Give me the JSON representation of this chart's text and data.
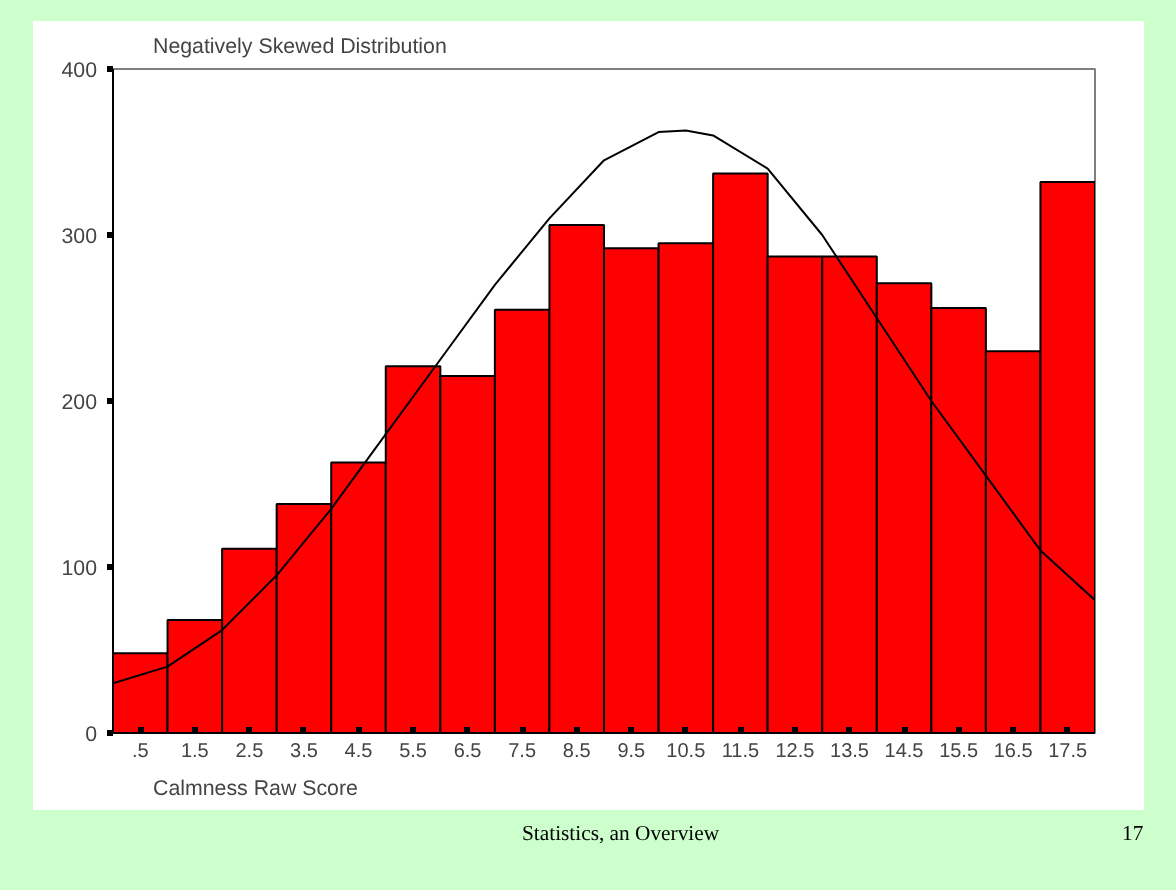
{
  "chart_data": {
    "type": "histogram",
    "title": "Negatively Skewed Distribution",
    "xlabel": "Calmness Raw Score",
    "bins": [
      0,
      1,
      2,
      3,
      4,
      5,
      6,
      7,
      8,
      9,
      10,
      11,
      12,
      13,
      14,
      15,
      16,
      17,
      18
    ],
    "values": [
      48,
      68,
      111,
      138,
      163,
      221,
      215,
      255,
      306,
      292,
      295,
      337,
      287,
      287,
      271,
      256,
      230,
      332
    ],
    "color": "#ff0000",
    "series": [
      {
        "type": "line",
        "color": "#000000",
        "x": [
          0,
          1,
          2,
          3,
          4,
          5,
          6,
          7,
          8,
          9,
          10,
          10.5,
          11,
          12,
          13,
          14,
          15,
          16,
          17,
          18
        ],
        "values": [
          30,
          40,
          62,
          95,
          135,
          180,
          225,
          270,
          310,
          345,
          362,
          363,
          360,
          340,
          300,
          250,
          200,
          155,
          110,
          80
        ]
      }
    ],
    "xlim": [
      0,
      18
    ],
    "ylim": [
      0,
      400
    ],
    "xticks": [
      {
        "value": 0.5,
        "label": ".5"
      },
      {
        "value": 1.5,
        "label": "1.5"
      },
      {
        "value": 2.5,
        "label": "2.5"
      },
      {
        "value": 3.5,
        "label": "3.5"
      },
      {
        "value": 4.5,
        "label": "4.5"
      },
      {
        "value": 5.5,
        "label": "5.5"
      },
      {
        "value": 6.5,
        "label": "6.5"
      },
      {
        "value": 7.5,
        "label": "7.5"
      },
      {
        "value": 8.5,
        "label": "8.5"
      },
      {
        "value": 9.5,
        "label": "9.5"
      },
      {
        "value": 10.5,
        "label": "10.5"
      },
      {
        "value": 11.5,
        "label": "11.5"
      },
      {
        "value": 12.5,
        "label": "12.5"
      },
      {
        "value": 13.5,
        "label": "13.5"
      },
      {
        "value": 14.5,
        "label": "14.5"
      },
      {
        "value": 15.5,
        "label": "15.5"
      },
      {
        "value": 16.5,
        "label": "16.5"
      },
      {
        "value": 17.5,
        "label": "17.5"
      }
    ],
    "yticks": [
      0,
      100,
      200,
      300,
      400
    ],
    "grid": false,
    "annotations": [
      "Statistics, an Overview",
      "17"
    ]
  }
}
